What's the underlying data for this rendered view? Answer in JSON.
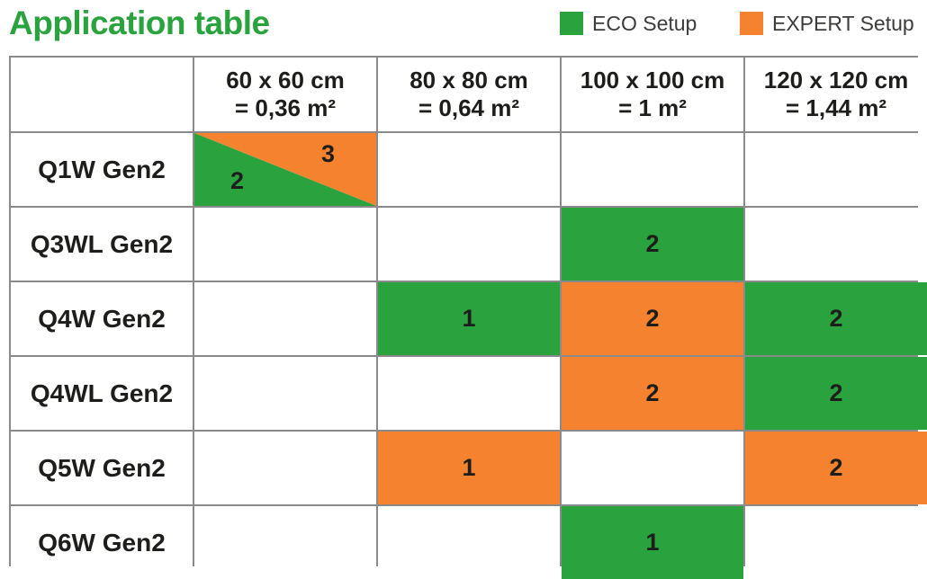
{
  "title": "Application table",
  "legend": [
    {
      "label": "ECO Setup",
      "color": "#2aa33f"
    },
    {
      "label": "EXPERT Setup",
      "color": "#f5822f"
    }
  ],
  "columns": [
    {
      "line1": "60 x 60 cm",
      "line2": "= 0,36 m²"
    },
    {
      "line1": "80 x 80 cm",
      "line2": "= 0,64 m²"
    },
    {
      "line1": "100 x 100 cm",
      "line2": "= 1 m²"
    },
    {
      "line1": "120 x 120 cm",
      "line2": "= 1,44 m²"
    }
  ],
  "rows": [
    {
      "label": "Q1W Gen2",
      "cells": [
        {
          "split": true,
          "eco": "2",
          "expert": "3"
        },
        {
          "type": "none",
          "value": ""
        },
        {
          "type": "none",
          "value": ""
        },
        {
          "type": "none",
          "value": ""
        }
      ]
    },
    {
      "label": "Q3WL Gen2",
      "cells": [
        {
          "type": "none",
          "value": ""
        },
        {
          "type": "none",
          "value": ""
        },
        {
          "type": "eco",
          "value": "2"
        },
        {
          "type": "none",
          "value": ""
        }
      ]
    },
    {
      "label": "Q4W Gen2",
      "cells": [
        {
          "type": "none",
          "value": ""
        },
        {
          "type": "eco",
          "value": "1"
        },
        {
          "type": "expert",
          "value": "2"
        },
        {
          "type": "eco",
          "value": "2"
        }
      ]
    },
    {
      "label": "Q4WL Gen2",
      "cells": [
        {
          "type": "none",
          "value": ""
        },
        {
          "type": "none",
          "value": ""
        },
        {
          "type": "expert",
          "value": "2"
        },
        {
          "type": "eco",
          "value": "2"
        }
      ]
    },
    {
      "label": "Q5W Gen2",
      "cells": [
        {
          "type": "none",
          "value": ""
        },
        {
          "type": "expert",
          "value": "1"
        },
        {
          "type": "none",
          "value": ""
        },
        {
          "type": "expert",
          "value": "2"
        }
      ]
    },
    {
      "label": "Q6W Gen2",
      "cells": [
        {
          "type": "none",
          "value": ""
        },
        {
          "type": "none",
          "value": ""
        },
        {
          "type": "eco",
          "value": "1"
        },
        {
          "type": "none",
          "value": ""
        }
      ]
    }
  ]
}
